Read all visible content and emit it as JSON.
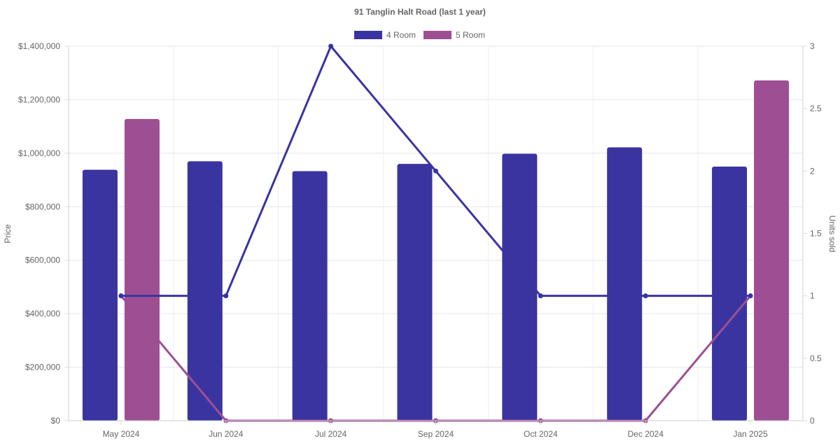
{
  "chart_data": {
    "type": "bar",
    "title": "91 Tanglin Halt Road (last 1 year)",
    "categories": [
      "May 2024",
      "Jun 2024",
      "Jul 2024",
      "Sep 2024",
      "Oct 2024",
      "Dec 2024",
      "Jan 2025"
    ],
    "y_left": {
      "label": "Price",
      "ylim": [
        0,
        1400000
      ],
      "ticks": [
        0,
        200000,
        400000,
        600000,
        800000,
        1000000,
        1200000,
        1400000
      ],
      "tick_labels": [
        "$0",
        "$200,000",
        "$400,000",
        "$600,000",
        "$800,000",
        "$1,000,000",
        "$1,200,000",
        "$1,400,000"
      ]
    },
    "y_right": {
      "label": "Units sold",
      "ylim": [
        0,
        3
      ],
      "ticks": [
        0,
        0.5,
        1,
        1.5,
        2,
        2.5,
        3
      ],
      "tick_labels": [
        "0",
        "0.5",
        "1",
        "1.5",
        "2",
        "2.5",
        "3"
      ]
    },
    "bar_series": [
      {
        "name": "4 Room",
        "color": "#3a34a0",
        "values": [
          938000,
          970000,
          933000,
          960000,
          998000,
          1022000,
          950000
        ]
      },
      {
        "name": "5 Room",
        "color": "#9e4f94",
        "values": [
          1128000,
          null,
          null,
          null,
          null,
          null,
          1272000
        ]
      }
    ],
    "line_series": [
      {
        "name": "4 Room",
        "color": "#3a34a0",
        "values": [
          1,
          1,
          3,
          2,
          1,
          1,
          1
        ]
      },
      {
        "name": "5 Room",
        "color": "#9e4f94",
        "values": [
          1,
          0,
          0,
          0,
          0,
          0,
          1
        ]
      }
    ],
    "legend": [
      {
        "label": "4 Room",
        "color": "#3a34a0"
      },
      {
        "label": "5 Room",
        "color": "#9e4f94"
      }
    ],
    "legend_position": "top",
    "grid": true
  }
}
